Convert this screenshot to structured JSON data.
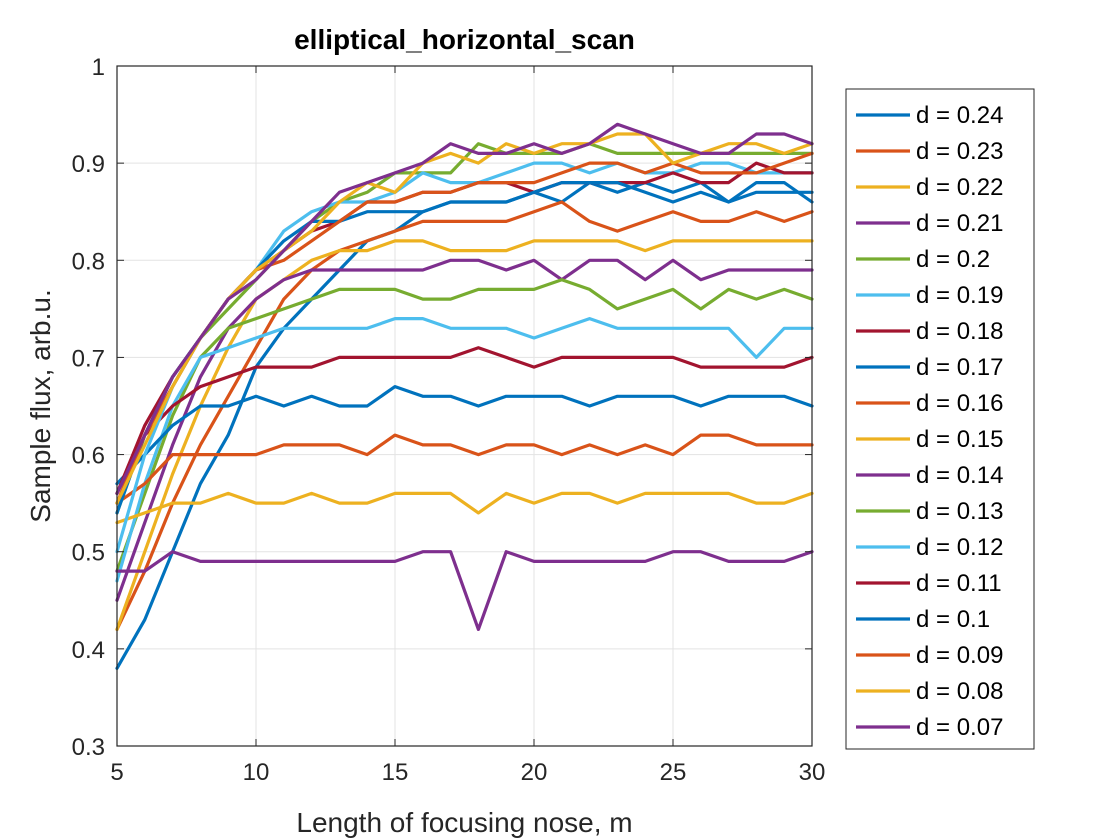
{
  "chart_data": {
    "type": "line",
    "title": "elliptical_horizontal_scan",
    "xlabel": "Length of focusing nose, m",
    "ylabel": "Sample flux, arb.u.",
    "xlim": [
      5,
      30
    ],
    "ylim": [
      0.3,
      1
    ],
    "xticks": [
      5,
      10,
      15,
      20,
      25,
      30
    ],
    "yticks": [
      0.3,
      0.4,
      0.5,
      0.6,
      0.7,
      0.8,
      0.9,
      1
    ],
    "ytick_labels": [
      "0.3",
      "0.4",
      "0.5",
      "0.6",
      "0.7",
      "0.8",
      "0.9",
      "1"
    ],
    "grid": true,
    "legend_position": "outside-right",
    "x": [
      5,
      6,
      7,
      8,
      9,
      10,
      11,
      12,
      13,
      14,
      15,
      16,
      17,
      18,
      19,
      20,
      21,
      22,
      23,
      24,
      25,
      26,
      27,
      28,
      29,
      30
    ],
    "series": [
      {
        "name": "d = 0.24",
        "color": "#0072BD",
        "values": [
          0.38,
          0.43,
          0.5,
          0.57,
          0.62,
          0.69,
          0.73,
          0.76,
          0.79,
          0.82,
          0.83,
          0.85,
          0.86,
          0.86,
          0.86,
          0.87,
          0.86,
          0.88,
          0.87,
          0.88,
          0.87,
          0.88,
          0.86,
          0.88,
          0.88,
          0.86
        ]
      },
      {
        "name": "d = 0.23",
        "color": "#D95319",
        "values": [
          0.42,
          0.48,
          0.55,
          0.61,
          0.66,
          0.71,
          0.76,
          0.79,
          0.81,
          0.82,
          0.83,
          0.84,
          0.84,
          0.84,
          0.84,
          0.85,
          0.86,
          0.84,
          0.83,
          0.84,
          0.85,
          0.84,
          0.84,
          0.85,
          0.84,
          0.85
        ]
      },
      {
        "name": "d = 0.22",
        "color": "#EDB120",
        "values": [
          0.42,
          0.5,
          0.58,
          0.65,
          0.71,
          0.76,
          0.78,
          0.8,
          0.81,
          0.81,
          0.82,
          0.82,
          0.81,
          0.81,
          0.81,
          0.82,
          0.82,
          0.82,
          0.82,
          0.81,
          0.82,
          0.82,
          0.82,
          0.82,
          0.82,
          0.82
        ]
      },
      {
        "name": "d = 0.21",
        "color": "#7E2F8E",
        "values": [
          0.45,
          0.53,
          0.61,
          0.68,
          0.73,
          0.76,
          0.78,
          0.79,
          0.79,
          0.79,
          0.79,
          0.79,
          0.8,
          0.8,
          0.79,
          0.8,
          0.78,
          0.8,
          0.8,
          0.78,
          0.8,
          0.78,
          0.79,
          0.79,
          0.79,
          0.79
        ]
      },
      {
        "name": "d = 0.2",
        "color": "#77AC30",
        "values": [
          0.48,
          0.56,
          0.64,
          0.7,
          0.73,
          0.74,
          0.75,
          0.76,
          0.77,
          0.77,
          0.77,
          0.76,
          0.76,
          0.77,
          0.77,
          0.77,
          0.78,
          0.77,
          0.75,
          0.76,
          0.77,
          0.75,
          0.77,
          0.76,
          0.77,
          0.76
        ]
      },
      {
        "name": "d = 0.19",
        "color": "#4DBEEE",
        "values": [
          0.47,
          0.57,
          0.65,
          0.7,
          0.71,
          0.72,
          0.73,
          0.73,
          0.73,
          0.73,
          0.74,
          0.74,
          0.73,
          0.73,
          0.73,
          0.72,
          0.73,
          0.74,
          0.73,
          0.73,
          0.73,
          0.73,
          0.73,
          0.7,
          0.73,
          0.73
        ]
      },
      {
        "name": "d = 0.18",
        "color": "#A2142F",
        "values": [
          0.56,
          0.62,
          0.65,
          0.67,
          0.68,
          0.69,
          0.69,
          0.69,
          0.7,
          0.7,
          0.7,
          0.7,
          0.7,
          0.71,
          0.7,
          0.69,
          0.7,
          0.7,
          0.7,
          0.7,
          0.7,
          0.69,
          0.69,
          0.69,
          0.69,
          0.7
        ]
      },
      {
        "name": "d = 0.17",
        "color": "#0072BD",
        "values": [
          0.57,
          0.6,
          0.63,
          0.65,
          0.65,
          0.66,
          0.65,
          0.66,
          0.65,
          0.65,
          0.67,
          0.66,
          0.66,
          0.65,
          0.66,
          0.66,
          0.66,
          0.65,
          0.66,
          0.66,
          0.66,
          0.65,
          0.66,
          0.66,
          0.66,
          0.65
        ]
      },
      {
        "name": "d = 0.16",
        "color": "#D95319",
        "values": [
          0.55,
          0.57,
          0.6,
          0.6,
          0.6,
          0.6,
          0.61,
          0.61,
          0.61,
          0.6,
          0.62,
          0.61,
          0.61,
          0.6,
          0.61,
          0.61,
          0.6,
          0.61,
          0.6,
          0.61,
          0.6,
          0.62,
          0.62,
          0.61,
          0.61,
          0.61
        ]
      },
      {
        "name": "d = 0.15",
        "color": "#EDB120",
        "values": [
          0.53,
          0.54,
          0.55,
          0.55,
          0.56,
          0.55,
          0.55,
          0.56,
          0.55,
          0.55,
          0.56,
          0.56,
          0.56,
          0.54,
          0.56,
          0.55,
          0.56,
          0.56,
          0.55,
          0.56,
          0.56,
          0.56,
          0.56,
          0.55,
          0.55,
          0.56
        ]
      },
      {
        "name": "d = 0.14",
        "color": "#7E2F8E",
        "values": [
          0.48,
          0.48,
          0.5,
          0.49,
          0.49,
          0.49,
          0.49,
          0.49,
          0.49,
          0.49,
          0.49,
          0.5,
          0.5,
          0.42,
          0.5,
          0.49,
          0.49,
          0.49,
          0.49,
          0.49,
          0.5,
          0.5,
          0.49,
          0.49,
          0.49,
          0.5
        ]
      },
      {
        "name": "d = 0.13",
        "color": "#77AC30",
        "values": [
          0.54,
          0.62,
          0.68,
          0.72,
          0.75,
          0.78,
          0.81,
          0.84,
          0.86,
          0.87,
          0.89,
          0.89,
          0.89,
          0.92,
          0.91,
          0.91,
          0.91,
          0.92,
          0.91,
          0.91,
          0.91,
          0.91,
          0.91,
          0.91,
          0.91,
          0.91
        ]
      },
      {
        "name": "d = 0.12",
        "color": "#4DBEEE",
        "values": [
          0.5,
          0.6,
          0.67,
          0.72,
          0.76,
          0.79,
          0.83,
          0.85,
          0.86,
          0.86,
          0.87,
          0.89,
          0.88,
          0.88,
          0.89,
          0.9,
          0.9,
          0.89,
          0.9,
          0.89,
          0.89,
          0.9,
          0.9,
          0.89,
          0.89,
          0.89
        ]
      },
      {
        "name": "d = 0.11",
        "color": "#A2142F",
        "values": [
          0.56,
          0.63,
          0.68,
          0.72,
          0.76,
          0.79,
          0.81,
          0.83,
          0.84,
          0.86,
          0.86,
          0.87,
          0.87,
          0.88,
          0.88,
          0.87,
          0.88,
          0.88,
          0.88,
          0.88,
          0.89,
          0.88,
          0.88,
          0.9,
          0.89,
          0.89
        ]
      },
      {
        "name": "d = 0.1",
        "color": "#0072BD",
        "values": [
          0.54,
          0.62,
          0.68,
          0.72,
          0.76,
          0.79,
          0.82,
          0.84,
          0.84,
          0.85,
          0.85,
          0.85,
          0.86,
          0.86,
          0.86,
          0.87,
          0.88,
          0.88,
          0.88,
          0.87,
          0.86,
          0.87,
          0.86,
          0.87,
          0.87,
          0.87
        ]
      },
      {
        "name": "d = 0.09",
        "color": "#D95319",
        "values": [
          0.55,
          0.62,
          0.67,
          0.72,
          0.76,
          0.79,
          0.8,
          0.82,
          0.84,
          0.86,
          0.86,
          0.87,
          0.87,
          0.88,
          0.88,
          0.88,
          0.89,
          0.9,
          0.9,
          0.89,
          0.9,
          0.89,
          0.89,
          0.89,
          0.9,
          0.91
        ]
      },
      {
        "name": "d = 0.08",
        "color": "#EDB120",
        "values": [
          0.55,
          0.61,
          0.67,
          0.72,
          0.76,
          0.79,
          0.81,
          0.83,
          0.86,
          0.88,
          0.87,
          0.9,
          0.91,
          0.9,
          0.92,
          0.91,
          0.92,
          0.92,
          0.93,
          0.93,
          0.9,
          0.91,
          0.92,
          0.92,
          0.91,
          0.92
        ]
      },
      {
        "name": "d = 0.07",
        "color": "#7E2F8E",
        "values": [
          0.56,
          0.62,
          0.68,
          0.72,
          0.76,
          0.78,
          0.81,
          0.84,
          0.87,
          0.88,
          0.89,
          0.9,
          0.92,
          0.91,
          0.91,
          0.92,
          0.91,
          0.92,
          0.94,
          0.93,
          0.92,
          0.91,
          0.91,
          0.93,
          0.93,
          0.92
        ]
      }
    ]
  }
}
